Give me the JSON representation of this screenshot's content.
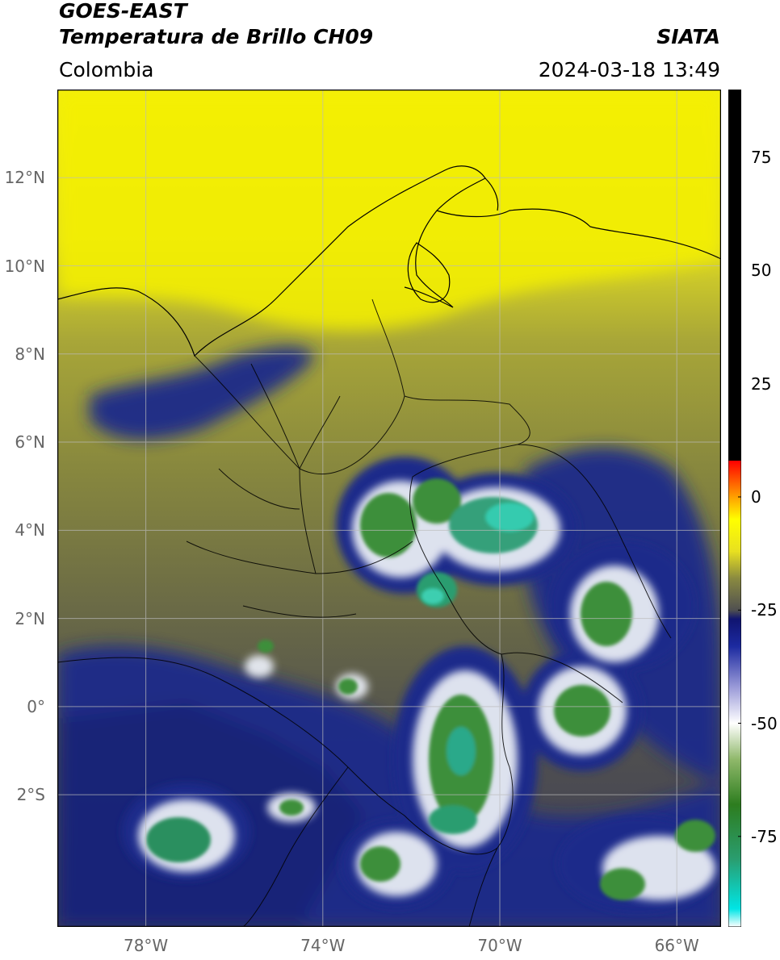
{
  "header": {
    "title_line1": "GOES-EAST",
    "title_line2": "Temperatura de Brillo CH09",
    "region": "Colombia",
    "agency": "SIATA",
    "timestamp": "2024-03-18 13:49"
  },
  "axes": {
    "lat_labels": [
      {
        "lat": 12,
        "text": "12°N"
      },
      {
        "lat": 10,
        "text": "10°N"
      },
      {
        "lat": 8,
        "text": "8°N"
      },
      {
        "lat": 6,
        "text": "6°N"
      },
      {
        "lat": 4,
        "text": "4°N"
      },
      {
        "lat": 2,
        "text": "2°N"
      },
      {
        "lat": 0,
        "text": "0°"
      },
      {
        "lat": -2,
        "text": "2°S"
      }
    ],
    "lon_labels": [
      {
        "lon": -78,
        "text": "78°W"
      },
      {
        "lon": -74,
        "text": "74°W"
      },
      {
        "lon": -70,
        "text": "70°W"
      },
      {
        "lon": -66,
        "text": "66°W"
      }
    ],
    "lon_range": [
      -80,
      -65
    ],
    "lat_range": [
      -5,
      14
    ]
  },
  "colorbar": {
    "range": [
      -95,
      90
    ],
    "ticks": [
      {
        "value": 75,
        "text": "75"
      },
      {
        "value": 50,
        "text": "50"
      },
      {
        "value": 25,
        "text": "25"
      },
      {
        "value": 0,
        "text": "0"
      },
      {
        "value": -25,
        "text": "-25"
      },
      {
        "value": -50,
        "text": "-50"
      },
      {
        "value": -75,
        "text": "-75"
      }
    ],
    "stops": [
      {
        "value": -95,
        "color": "#ffffff"
      },
      {
        "value": -91,
        "color": "#00e5e5"
      },
      {
        "value": -80,
        "color": "#2a9d6f"
      },
      {
        "value": -68,
        "color": "#2d7d1f"
      },
      {
        "value": -58,
        "color": "#8fb86a"
      },
      {
        "value": -50,
        "color": "#ffffff"
      },
      {
        "value": -42,
        "color": "#9a9ad8"
      },
      {
        "value": -33,
        "color": "#1c2aa0"
      },
      {
        "value": -27,
        "color": "#101470"
      },
      {
        "value": -25,
        "color": "#505050"
      },
      {
        "value": -18,
        "color": "#8a8a40"
      },
      {
        "value": -12,
        "color": "#e8e020"
      },
      {
        "value": -5,
        "color": "#ffff00"
      },
      {
        "value": 0,
        "color": "#ffa000"
      },
      {
        "value": 8,
        "color": "#ff0000"
      },
      {
        "value": 8.01,
        "color": "#000000"
      },
      {
        "value": 90,
        "color": "#000000"
      }
    ]
  },
  "colors": {
    "warm_background": "#8a8a40",
    "cold_background": "#1c2a8a",
    "coast_line": "#000000",
    "grid_line": "#bbbbbb"
  }
}
